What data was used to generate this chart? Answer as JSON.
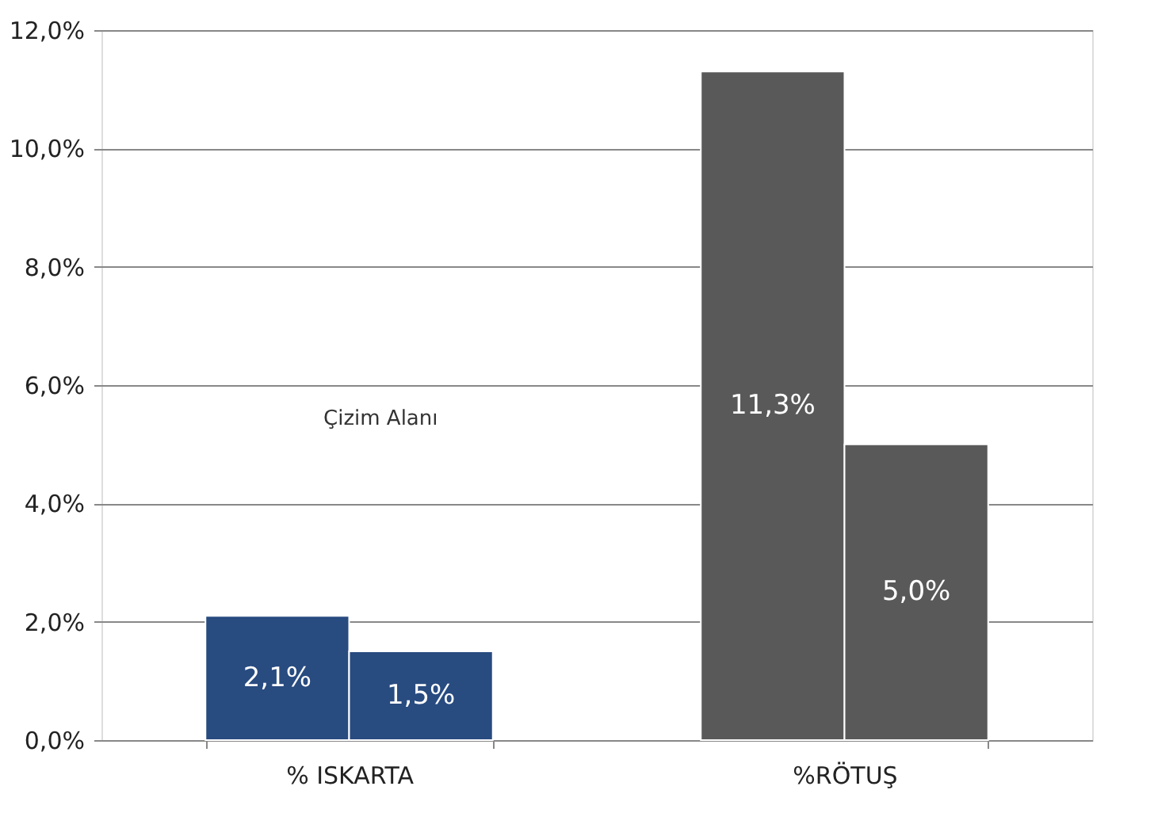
{
  "chart_data": {
    "type": "bar",
    "categories": [
      "% ISKARTA",
      "%RÖTUŞ"
    ],
    "series": [
      {
        "colors": [
          "#284b80",
          "#595959"
        ],
        "values": [
          2.1,
          11.3
        ],
        "value_labels": [
          "2,1%",
          "11,3%"
        ]
      },
      {
        "colors": [
          "#284b80",
          "#595959"
        ],
        "values": [
          1.5,
          5.0
        ],
        "value_labels": [
          "1,5%",
          "5,0%"
        ]
      }
    ],
    "ylim": [
      0,
      12
    ],
    "yticks": [
      {
        "value": 0,
        "label": "0,0%"
      },
      {
        "value": 2,
        "label": "2,0%"
      },
      {
        "value": 4,
        "label": "4,0%"
      },
      {
        "value": 6,
        "label": "6,0%"
      },
      {
        "value": 8,
        "label": "8,0%"
      },
      {
        "value": 10,
        "label": "10,0%"
      },
      {
        "value": 12,
        "label": "12,0%"
      }
    ],
    "grid": "y",
    "annotations": [
      "Çizim Alanı"
    ]
  }
}
